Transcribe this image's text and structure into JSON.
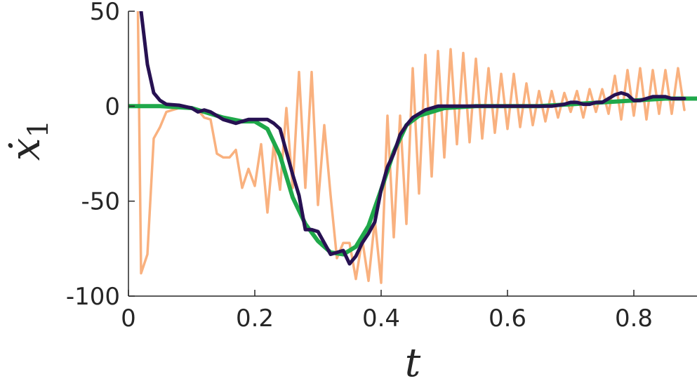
{
  "chart_data": {
    "type": "line",
    "title": "",
    "xlabel": "t",
    "ylabel_main": "ẋ",
    "ylabel_sub": "1",
    "xlim": [
      0,
      0.9
    ],
    "ylim": [
      -100,
      50
    ],
    "x_ticks": [
      0,
      0.2,
      0.4,
      0.6,
      0.8
    ],
    "x_tick_labels": [
      "0",
      "0.2",
      "0.4",
      "0.6",
      "0.8"
    ],
    "y_ticks": [
      50,
      0,
      -50,
      -100
    ],
    "y_tick_labels": [
      "50",
      "0",
      "-50",
      "-100"
    ],
    "grid": false,
    "legend": "none",
    "series": [
      {
        "color": "#f9b17f",
        "stroke_width": 3.5,
        "x": [
          0.015,
          0.02,
          0.03,
          0.04,
          0.05,
          0.06,
          0.07,
          0.08,
          0.09,
          0.1,
          0.11,
          0.12,
          0.13,
          0.14,
          0.15,
          0.16,
          0.17,
          0.18,
          0.19,
          0.2,
          0.21,
          0.22,
          0.23,
          0.24,
          0.25,
          0.26,
          0.27,
          0.28,
          0.29,
          0.3,
          0.31,
          0.32,
          0.33,
          0.34,
          0.35,
          0.36,
          0.37,
          0.38,
          0.39,
          0.4,
          0.41,
          0.42,
          0.43,
          0.44,
          0.45,
          0.46,
          0.47,
          0.48,
          0.49,
          0.5,
          0.51,
          0.52,
          0.53,
          0.54,
          0.55,
          0.56,
          0.57,
          0.58,
          0.59,
          0.6,
          0.61,
          0.62,
          0.63,
          0.64,
          0.65,
          0.66,
          0.67,
          0.68,
          0.69,
          0.7,
          0.71,
          0.72,
          0.73,
          0.74,
          0.75,
          0.76,
          0.77,
          0.78,
          0.79,
          0.8,
          0.81,
          0.82,
          0.83,
          0.84,
          0.85,
          0.86,
          0.87,
          0.88
        ],
        "y": [
          50,
          -88,
          -78,
          -17,
          -11,
          -3,
          -2,
          -1,
          -1,
          -1,
          -2,
          -6,
          -7,
          -25,
          -27,
          -27,
          -23,
          -43,
          -33,
          -42,
          -20,
          -56,
          -20,
          -44,
          -1,
          -43,
          18,
          -43,
          18,
          -52,
          -10,
          -47,
          -80,
          -72,
          -72,
          -91,
          -70,
          -92,
          -60,
          -93,
          -5,
          -69,
          -5,
          -62,
          20,
          -46,
          27,
          -37,
          29,
          -27,
          30,
          -20,
          28,
          -19,
          25,
          -17,
          20,
          -14,
          17,
          -12,
          17,
          -11,
          12,
          -10,
          8,
          -8,
          8,
          -6,
          7,
          -3,
          8,
          -6,
          9,
          -3,
          9,
          -4,
          16,
          -7,
          19,
          -5,
          20,
          -7,
          19,
          -4,
          19,
          -4,
          20,
          -2
        ]
      },
      {
        "color": "#1fa84a",
        "stroke_width": 6,
        "x": [
          0.0,
          0.05,
          0.1,
          0.15,
          0.18,
          0.2,
          0.22,
          0.24,
          0.26,
          0.28,
          0.3,
          0.32,
          0.34,
          0.36,
          0.38,
          0.4,
          0.42,
          0.44,
          0.46,
          0.48,
          0.5,
          0.55,
          0.6,
          0.65,
          0.7,
          0.75,
          0.8,
          0.85,
          0.9
        ],
        "y": [
          0,
          0,
          -1,
          -6,
          -8,
          -8,
          -12,
          -26,
          -48,
          -62,
          -71,
          -77,
          -78,
          -74,
          -63,
          -44,
          -24,
          -10,
          -5,
          -3,
          -1,
          0,
          0,
          0,
          1,
          2,
          3,
          4,
          4
        ]
      },
      {
        "color": "#271152",
        "stroke_width": 5,
        "x": [
          0.02,
          0.03,
          0.04,
          0.05,
          0.06,
          0.08,
          0.1,
          0.11,
          0.12,
          0.13,
          0.14,
          0.15,
          0.17,
          0.19,
          0.21,
          0.22,
          0.23,
          0.24,
          0.25,
          0.26,
          0.27,
          0.28,
          0.29,
          0.3,
          0.31,
          0.32,
          0.33,
          0.34,
          0.35,
          0.36,
          0.37,
          0.38,
          0.39,
          0.4,
          0.41,
          0.42,
          0.43,
          0.44,
          0.45,
          0.46,
          0.47,
          0.48,
          0.49,
          0.5,
          0.52,
          0.55,
          0.6,
          0.65,
          0.67,
          0.69,
          0.7,
          0.71,
          0.72,
          0.73,
          0.74,
          0.75,
          0.76,
          0.77,
          0.78,
          0.79,
          0.8,
          0.81,
          0.82,
          0.83,
          0.84,
          0.85,
          0.86,
          0.87,
          0.88
        ],
        "y": [
          50,
          22,
          7,
          3,
          1,
          0.5,
          -1,
          -3,
          -2,
          -3,
          -5,
          -7,
          -9,
          -7,
          -7,
          -7,
          -9,
          -12,
          -24,
          -36,
          -47,
          -65,
          -65,
          -66,
          -72,
          -78,
          -77,
          -76,
          -83,
          -79,
          -72,
          -67,
          -61,
          -44,
          -32,
          -25,
          -15,
          -10,
          -6,
          -4,
          -2,
          -1,
          0,
          0,
          0,
          0,
          0,
          0,
          0,
          1,
          2,
          2,
          1,
          1,
          2,
          2,
          4,
          6,
          7,
          6,
          3,
          3,
          4,
          5,
          5,
          5,
          4,
          4,
          4
        ]
      }
    ]
  }
}
